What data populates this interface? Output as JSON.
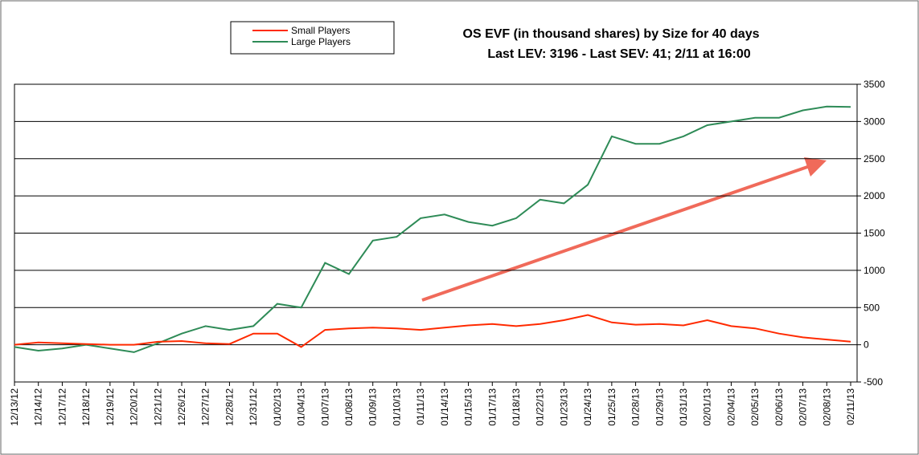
{
  "chart_data": {
    "type": "line",
    "title": "OS EVF (in thousand shares) by Size for 40 days",
    "subtitle": "Last LEV: 3196 - Last SEV: 41; 2/11 at 16:00",
    "categories": [
      "12/13/12",
      "12/14/12",
      "12/17/12",
      "12/18/12",
      "12/19/12",
      "12/20/12",
      "12/21/12",
      "12/26/12",
      "12/27/12",
      "12/28/12",
      "12/31/12",
      "01/02/13",
      "01/04/13",
      "01/07/13",
      "01/08/13",
      "01/09/13",
      "01/10/13",
      "01/11/13",
      "01/14/13",
      "01/15/13",
      "01/17/13",
      "01/18/13",
      "01/22/13",
      "01/23/13",
      "01/24/13",
      "01/25/13",
      "01/28/13",
      "01/29/13",
      "01/31/13",
      "02/01/13",
      "02/04/13",
      "02/05/13",
      "02/06/13",
      "02/07/13",
      "02/08/13",
      "02/11/13"
    ],
    "series": [
      {
        "name": "Small Players",
        "color": "#ff2a00",
        "values": [
          0,
          30,
          20,
          10,
          0,
          0,
          40,
          50,
          20,
          10,
          150,
          150,
          -30,
          200,
          220,
          230,
          220,
          200,
          230,
          260,
          280,
          250,
          280,
          330,
          400,
          300,
          270,
          280,
          260,
          330,
          250,
          220,
          150,
          100,
          70,
          41
        ]
      },
      {
        "name": "Large Players",
        "color": "#2e8b57",
        "values": [
          -30,
          -80,
          -50,
          0,
          -50,
          -100,
          20,
          150,
          250,
          200,
          250,
          550,
          500,
          1100,
          950,
          1400,
          1450,
          1700,
          1750,
          1650,
          1600,
          1700,
          1950,
          1900,
          2150,
          2800,
          2700,
          2700,
          2800,
          2950,
          3000,
          3050,
          3050,
          3150,
          3200,
          3196
        ]
      }
    ],
    "ylim": [
      -500,
      3500
    ],
    "yticks": [
      -500,
      0,
      500,
      1000,
      1500,
      2000,
      2500,
      3000,
      3500
    ],
    "grid": true
  }
}
